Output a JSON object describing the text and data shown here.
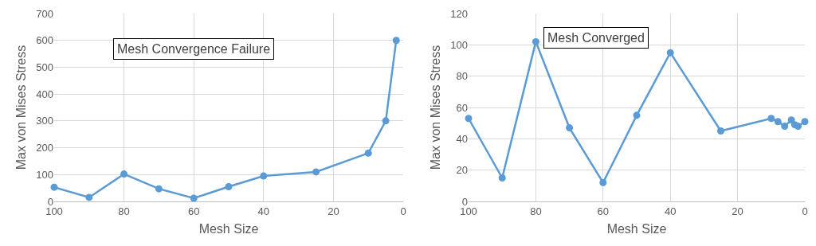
{
  "chart_data": [
    {
      "type": "line",
      "xlabel": "Mesh Size",
      "ylabel": "Max von Mises Stress",
      "annotations": [
        "Mesh Convergence Failure"
      ],
      "x": [
        100,
        90,
        80,
        70,
        60,
        50,
        40,
        25,
        10,
        5,
        2
      ],
      "series": [
        {
          "color": "#5b9bd5",
          "values": [
            53,
            15,
            102,
            47,
            12,
            55,
            95,
            110,
            180,
            300,
            600
          ]
        }
      ],
      "xlim": [
        100,
        0
      ],
      "xticks": [
        100,
        80,
        60,
        40,
        20,
        0
      ],
      "ylim": [
        0,
        700
      ],
      "yticks": [
        0,
        100,
        200,
        300,
        400,
        500,
        600,
        700
      ],
      "grid": true,
      "marker": "circle",
      "line_style": "solid"
    },
    {
      "type": "line",
      "xlabel": "Mesh Size",
      "ylabel": "Max von Mises Stress",
      "annotations": [
        "Mesh Converged"
      ],
      "x": [
        100,
        90,
        80,
        70,
        60,
        50,
        40,
        25,
        10,
        8,
        6,
        4,
        3,
        2,
        0
      ],
      "series": [
        {
          "color": "#5b9bd5",
          "values": [
            53,
            15,
            102,
            47,
            12,
            55,
            95,
            45,
            53,
            51,
            48,
            52,
            49,
            48,
            51
          ]
        }
      ],
      "xlim": [
        100,
        0
      ],
      "xticks": [
        100,
        80,
        60,
        40,
        20,
        0
      ],
      "ylim": [
        0,
        120
      ],
      "yticks": [
        0,
        20,
        40,
        60,
        80,
        100,
        120
      ],
      "grid": true,
      "marker": "circle",
      "line_style": "solid"
    }
  ]
}
